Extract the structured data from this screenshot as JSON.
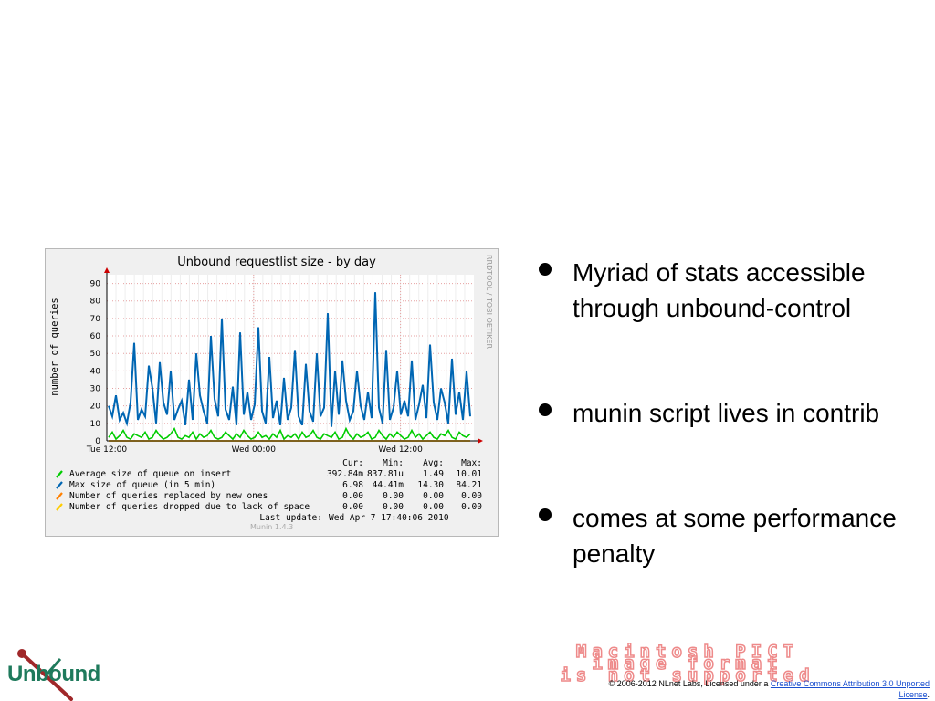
{
  "graph": {
    "title": "Unbound requestlist size - by day",
    "ylabel": "number of queries",
    "side_label": "RRDTOOL / TOBI OETIKER",
    "version": "Munin 1.4.3",
    "stats_header": {
      "cur": "Cur:",
      "min": "Min:",
      "avg": "Avg:",
      "max": "Max:"
    },
    "legend": [
      {
        "color": "#00cc00",
        "label": "Average size of queue on insert",
        "cur": "392.84m",
        "min": "837.81u",
        "avg": "1.49",
        "max": "10.01"
      },
      {
        "color": "#0066b3",
        "label": "Max size of queue (in 5 min)",
        "cur": "6.98",
        "min": "44.41m",
        "avg": "14.30",
        "max": "84.21"
      },
      {
        "color": "#ff8000",
        "label": "Number of queries replaced by new ones",
        "cur": "0.00",
        "min": "0.00",
        "avg": "0.00",
        "max": "0.00"
      },
      {
        "color": "#ffcc00",
        "label": "Number of queries dropped due to lack of space",
        "cur": "0.00",
        "min": "0.00",
        "avg": "0.00",
        "max": "0.00"
      }
    ],
    "last_update_label": "Last update:",
    "last_update_value": "Wed Apr  7 17:40:06 2010"
  },
  "chart_data": {
    "type": "line",
    "title": "Unbound requestlist size - by day",
    "ylabel": "number of queries",
    "xlabel": "",
    "ylim": [
      0,
      95
    ],
    "yticks": [
      0,
      10,
      20,
      30,
      40,
      50,
      60,
      70,
      80,
      90
    ],
    "xticks": [
      {
        "label": "Tue 12:00",
        "pos": 0.0
      },
      {
        "label": "Wed 00:00",
        "pos": 0.4
      },
      {
        "label": "Wed 12:00",
        "pos": 0.8
      }
    ],
    "grid": true,
    "series": [
      {
        "name": "Average size of queue on insert",
        "color": "#00cc00",
        "values": [
          2,
          5,
          1,
          3,
          6,
          2,
          1,
          4,
          3,
          2,
          5,
          1,
          2,
          6,
          3,
          1,
          2,
          4,
          7,
          2,
          1,
          3,
          2,
          5,
          1,
          4,
          2,
          3,
          6,
          2,
          1,
          2,
          5,
          3,
          1,
          4,
          2,
          6,
          3,
          1,
          2,
          5,
          2,
          3,
          1,
          4,
          2,
          6,
          1,
          3,
          2,
          4,
          1,
          5,
          2,
          3,
          6,
          2,
          1,
          4,
          3,
          2,
          5,
          1,
          2,
          7,
          3,
          1,
          4,
          2,
          3,
          5,
          1,
          2,
          6,
          3,
          1,
          4,
          2,
          5,
          3,
          1,
          2,
          6,
          2,
          4,
          1,
          3,
          5,
          2,
          1,
          4,
          3,
          6,
          2,
          1,
          5,
          3,
          2,
          4
        ]
      },
      {
        "name": "Max size of queue (in 5 min)",
        "color": "#0066b3",
        "values": [
          20,
          14,
          26,
          12,
          16,
          10,
          22,
          56,
          12,
          18,
          14,
          43,
          30,
          10,
          45,
          22,
          15,
          40,
          12,
          18,
          23,
          9,
          35,
          12,
          50,
          26,
          17,
          10,
          60,
          24,
          14,
          70,
          18,
          12,
          31,
          9,
          62,
          15,
          28,
          12,
          21,
          65,
          17,
          10,
          48,
          13,
          23,
          9,
          36,
          12,
          19,
          52,
          14,
          9,
          44,
          17,
          11,
          50,
          14,
          19,
          73,
          8,
          40,
          15,
          46,
          23,
          12,
          17,
          40,
          20,
          12,
          28,
          13,
          85,
          19,
          10,
          52,
          12,
          19,
          40,
          15,
          23,
          14,
          46,
          12,
          21,
          32,
          13,
          55,
          22,
          12,
          30,
          22,
          10,
          47,
          15,
          28,
          12,
          40,
          14
        ]
      },
      {
        "name": "Number of queries replaced by new ones",
        "color": "#ff8000",
        "values": [
          0,
          0,
          0,
          0,
          0,
          0,
          0,
          0,
          0,
          0
        ]
      },
      {
        "name": "Number of queries dropped due to lack of space",
        "color": "#ffcc00",
        "values": [
          0,
          0,
          0,
          0,
          0,
          0,
          0,
          0,
          0,
          0
        ]
      }
    ]
  },
  "bullets": [
    {
      "text": "Myriad of stats accessible through unbound-control"
    },
    {
      "text": "munin script lives in contrib"
    },
    {
      "text": "comes at some performance penalty"
    }
  ],
  "footer": {
    "logo_text": "Unbound",
    "pict_line1": "Macintosh PICT",
    "pict_line2": "image format",
    "pict_line3": "is not supported",
    "license_prefix": "© 2006-2012 NLnet Labs, Licensed under a ",
    "license_link": "Creative Commons Attribution 3.0 Unported License",
    "license_suffix": "."
  },
  "colors": {
    "grid": "#e6a0a0",
    "axis": "#000000",
    "panel_bg": "#f0f0f0",
    "plot_bg": "#ffffff"
  }
}
